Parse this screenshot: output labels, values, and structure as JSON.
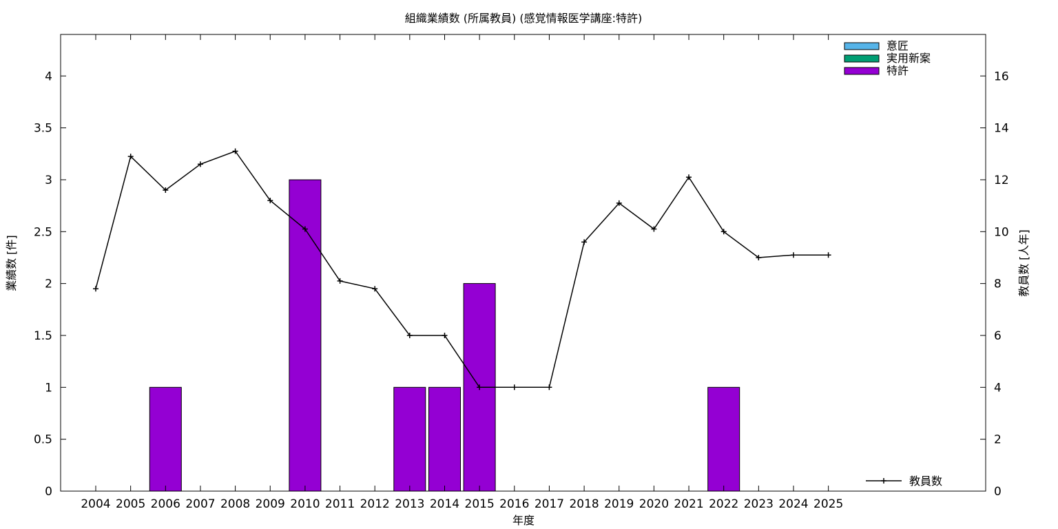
{
  "chart_data": {
    "type": "bar",
    "title": "組織業績数 (所属教員) (感覚情報医学講座:特許)",
    "xlabel": "年度",
    "ylabel": "業績数 [件]",
    "y2label": "教員数 [人年]",
    "categories": [
      "2004",
      "2005",
      "2006",
      "2007",
      "2008",
      "2009",
      "2010",
      "2011",
      "2012",
      "2013",
      "2014",
      "2015",
      "2016",
      "2017",
      "2018",
      "2019",
      "2020",
      "2021",
      "2022",
      "2023",
      "2024",
      "2025"
    ],
    "ylim": [
      0,
      4.4
    ],
    "yticks": [
      0,
      0.5,
      1,
      1.5,
      2,
      2.5,
      3,
      3.5,
      4
    ],
    "y2lim": [
      0,
      17.6
    ],
    "y2ticks": [
      0,
      2,
      4,
      6,
      8,
      10,
      12,
      14,
      16
    ],
    "grid": false,
    "legend_position": "top-right",
    "series": [
      {
        "name": "意匠",
        "kind": "bar",
        "color": "#56b4e9",
        "values": [
          0,
          0,
          0,
          0,
          0,
          0,
          0,
          0,
          0,
          0,
          0,
          0,
          0,
          0,
          0,
          0,
          0,
          0,
          0,
          0,
          0,
          0
        ]
      },
      {
        "name": "実用新案",
        "kind": "bar",
        "color": "#009e73",
        "values": [
          0,
          0,
          0,
          0,
          0,
          0,
          0,
          0,
          0,
          0,
          0,
          0,
          0,
          0,
          0,
          0,
          0,
          0,
          0,
          0,
          0,
          0
        ]
      },
      {
        "name": "特許",
        "kind": "bar",
        "color": "#9400d3",
        "values": [
          0,
          0,
          1,
          0,
          0,
          0,
          3,
          0,
          0,
          1,
          1,
          2,
          0,
          0,
          0,
          0,
          0,
          0,
          1,
          0,
          0,
          0
        ]
      },
      {
        "name": "教員数",
        "kind": "line",
        "axis": "right",
        "color": "#000000",
        "legend_position": "bottom-right",
        "values": [
          7.8,
          12.9,
          11.6,
          12.6,
          13.1,
          11.2,
          10.1,
          8.1,
          7.8,
          6.0,
          6.0,
          4.0,
          4.0,
          4.0,
          9.6,
          11.1,
          10.1,
          12.1,
          10.0,
          9.0,
          9.1,
          9.1
        ]
      }
    ]
  }
}
